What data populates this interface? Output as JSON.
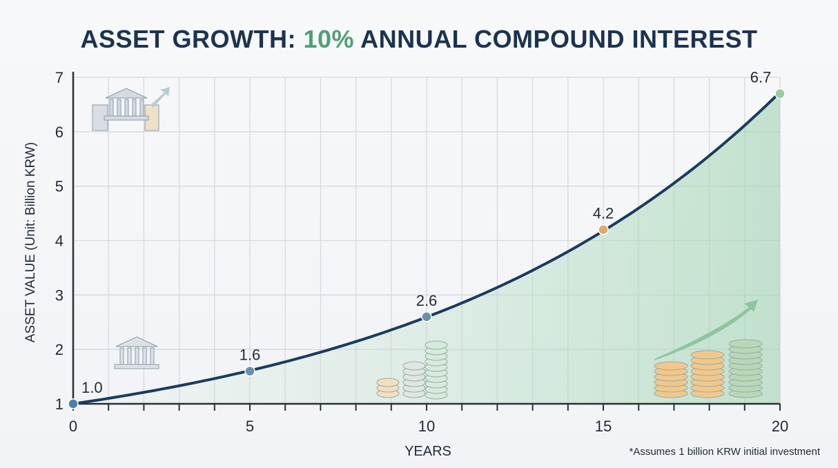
{
  "title": {
    "prefix": "ASSET GROWTH: ",
    "accent": "10%",
    "suffix": " ANNUAL COMPOUND INTEREST",
    "accent_color": "#4f9e76",
    "color": "#1c3350"
  },
  "footnote": "*Assumes 1 billion KRW initial investment",
  "chart_data": {
    "type": "line",
    "title": "ASSET GROWTH: 10% ANNUAL COMPOUND INTEREST",
    "xlabel": "YEARS",
    "ylabel": "ASSET VALUE (Unit: Billion KRW)",
    "xlim": [
      0,
      20
    ],
    "ylim": [
      1,
      7
    ],
    "xticks": [
      0,
      5,
      10,
      15,
      20
    ],
    "yticks": [
      1,
      2,
      3,
      4,
      5,
      6,
      7
    ],
    "grid": true,
    "growth_rate": 0.1,
    "area_fill": true,
    "line_color": "#1c3a5e",
    "fill_color": "#9fd3b0",
    "points": [
      {
        "x": 0,
        "y": 1.0,
        "label": "1.0",
        "color": "#4a7fae"
      },
      {
        "x": 5,
        "y": 1.6,
        "label": "1.6",
        "color": "#6a8fa6"
      },
      {
        "x": 10,
        "y": 2.6,
        "label": "2.6",
        "color": "#6a8fa6"
      },
      {
        "x": 15,
        "y": 4.2,
        "label": "4.2",
        "color": "#e0aa6a"
      },
      {
        "x": 20,
        "y": 6.7,
        "label": "6.7",
        "color": "#9ccaa2"
      }
    ],
    "icons": [
      "bank-growth-icon",
      "bank-icon",
      "coin-stacks-icon",
      "coin-stacks-growth-icon"
    ]
  }
}
